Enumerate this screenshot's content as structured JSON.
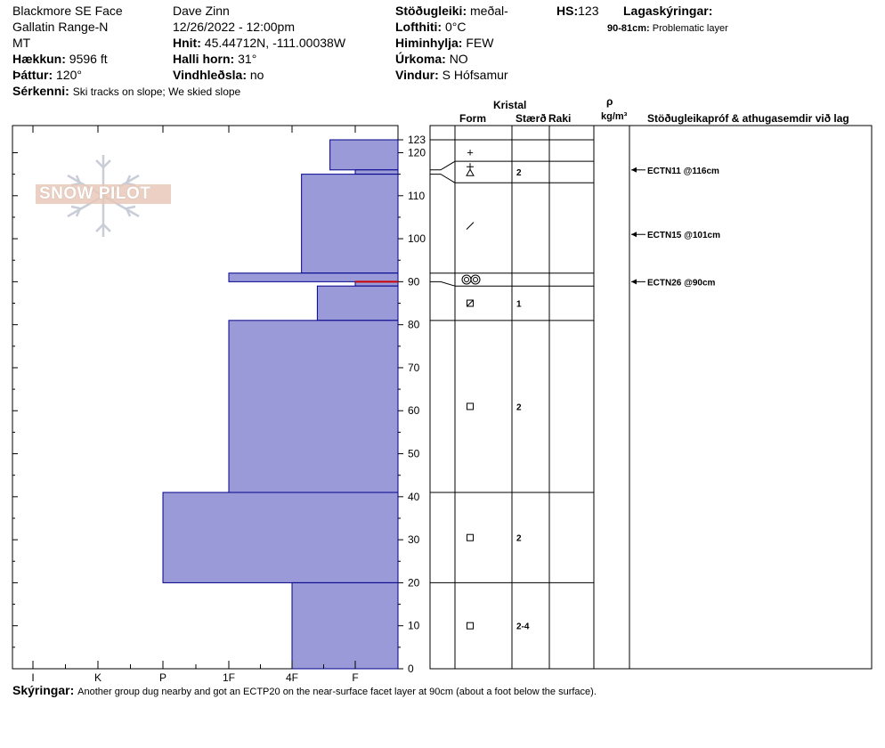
{
  "header": {
    "location": "Blackmore SE Face",
    "range": "Gallatin Range-N",
    "state": "MT",
    "elevation_label": "Hækkun:",
    "elevation_value": "9596 ft",
    "aspect_label": "Þáttur:",
    "aspect_value": "120°",
    "features_label": "Sérkenni:",
    "features_value": "Ski tracks on slope; We skied slope",
    "observer": "Dave Zinn",
    "datetime": "12/26/2022 - 12:00pm",
    "coords_label": "Hnit:",
    "coords_value": "45.44712N, -111.00038W",
    "slope_label": "Halli horn:",
    "slope_value": "31°",
    "wind_loading_label": "Vindhleðsla:",
    "wind_loading_value": "no",
    "stability_label": "Stöðugleiki:",
    "stability_value": "meðal-",
    "air_temp_label": "Lofthiti:",
    "air_temp_value": "0°C",
    "sky_label": "Himinhylja:",
    "sky_value": "FEW",
    "precip_label": "Úrkoma:",
    "precip_value": "NO",
    "wind_label": "Vindur:",
    "wind_value": "S Hófsamur",
    "hs_label": "HS:",
    "hs_value": "123",
    "layer_notes_label": "Lagaskýringar:",
    "layer_note_range": "90-81cm:",
    "layer_note_text": "Problematic layer"
  },
  "logo_text": "SNOW PILOT",
  "columns": {
    "crystal": "Kristal",
    "form": "Form",
    "size": "Stærð",
    "moisture": "Raki",
    "density_symbol": "ρ",
    "density_unit": "kg/m³",
    "comments": "Stöðugleikapróf & athugasemdir við lag"
  },
  "footer": {
    "notes_label": "Skýringar:",
    "notes_value": "Another group dug nearby and got an ECTP20 on the near-surface facet layer at 90cm (about a foot below the surface)."
  },
  "colors": {
    "hardness_fill": "#9a9ad8",
    "hardness_stroke": "#00008b",
    "problem_layer": "#cc0000",
    "logo": "#e8c8b8"
  },
  "chart_data": {
    "type": "bar",
    "ylabel": "",
    "ylim": [
      0,
      123
    ],
    "y_ticks": [
      0,
      10,
      20,
      30,
      40,
      50,
      60,
      70,
      80,
      90,
      100,
      110,
      120,
      123
    ],
    "hardness_categories": [
      "I",
      "K",
      "P",
      "1F",
      "4F",
      "F"
    ],
    "hardness_values": {
      "F": 1,
      "4F": 2,
      "1F": 3,
      "P": 4,
      "K": 5,
      "I": 6
    },
    "layers": [
      {
        "top": 123,
        "bottom": 116,
        "hardness": "4F-",
        "hardness_value": 1.4
      },
      {
        "top": 116,
        "bottom": 115,
        "hardness": "F",
        "hardness_value": 1.0
      },
      {
        "top": 115,
        "bottom": 92,
        "hardness": "F-4F",
        "hardness_value": 1.85
      },
      {
        "top": 92,
        "bottom": 90,
        "hardness": "1F",
        "hardness_value": 3.0
      },
      {
        "top": 90,
        "bottom": 89,
        "hardness": "F",
        "hardness_value": 1.0
      },
      {
        "top": 89,
        "bottom": 81,
        "hardness": "4F+",
        "hardness_value": 1.6
      },
      {
        "top": 81,
        "bottom": 41,
        "hardness": "1F",
        "hardness_value": 3.0
      },
      {
        "top": 41,
        "bottom": 20,
        "hardness": "P",
        "hardness_value": 4.0
      },
      {
        "top": 20,
        "bottom": 0,
        "hardness": "4F",
        "hardness_value": 2.0
      }
    ],
    "problem_layer_depth": 90,
    "strat_boundaries": [
      123,
      118,
      113,
      92,
      89,
      81,
      41,
      20,
      0
    ],
    "strat_layer_map": [
      [
        123,
        123
      ],
      [
        116,
        118
      ],
      [
        115,
        113
      ],
      [
        92,
        92
      ],
      [
        90,
        89
      ],
      [
        81,
        81
      ],
      [
        41,
        41
      ],
      [
        20,
        20
      ],
      [
        0,
        0
      ]
    ],
    "grain_layers": [
      {
        "depth": 120,
        "form": "+",
        "size": ""
      },
      {
        "depth": 115.5,
        "form": "surface-hoar",
        "size": "2"
      },
      {
        "depth": 103,
        "form": "/",
        "size": ""
      },
      {
        "depth": 90.5,
        "form": "melt-forms",
        "size": ""
      },
      {
        "depth": 85,
        "form": "mixed-facet",
        "size": "1"
      },
      {
        "depth": 61,
        "form": "facet",
        "size": "2"
      },
      {
        "depth": 30.5,
        "form": "facet",
        "size": "2"
      },
      {
        "depth": 10,
        "form": "facet",
        "size": "2-4"
      }
    ],
    "tests": [
      {
        "depth": 116,
        "label": "ECTN11 @116cm"
      },
      {
        "depth": 101,
        "label": "ECTN15 @101cm"
      },
      {
        "depth": 90,
        "label": "ECTN26 @90cm"
      }
    ]
  }
}
